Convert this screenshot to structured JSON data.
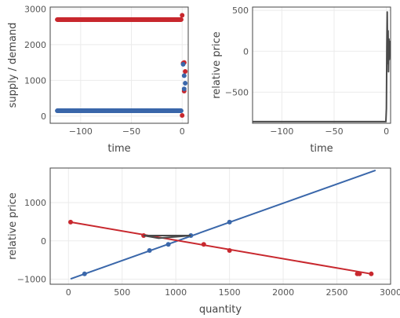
{
  "colors": {
    "supply": "#3a67aa",
    "demand": "#c8282e",
    "price": "#4a4a4a",
    "grid": "#ebebeb",
    "axis": "#444444"
  },
  "chart_data": [
    {
      "id": "top-left",
      "type": "scatter",
      "title": "",
      "xlabel": "time",
      "ylabel": "supply / demand",
      "xlim": [
        -130,
        6
      ],
      "ylim": [
        -200,
        3050
      ],
      "xticks": [
        -100,
        -50,
        0
      ],
      "yticks": [
        0,
        1000,
        2000,
        3000
      ],
      "series": [
        {
          "color": "#c8282e",
          "flat": {
            "x_start": -123,
            "x_end": -1,
            "step": 0.5,
            "y": 2700
          },
          "points": [
            [
              0,
              2820
            ],
            [
              1,
              1480
            ],
            [
              2,
              1500
            ],
            [
              3,
              1250
            ],
            [
              2,
              700
            ],
            [
              0,
              20
            ]
          ]
        },
        {
          "color": "#3a67aa",
          "flat": {
            "x_start": -123,
            "x_end": -1,
            "step": 0.5,
            "y": 150
          },
          "points": [
            [
              1,
              1450
            ],
            [
              2,
              1130
            ],
            [
              3,
              920
            ],
            [
              2,
              760
            ]
          ]
        }
      ]
    },
    {
      "id": "top-right",
      "type": "line",
      "title": "",
      "xlabel": "time",
      "ylabel": "relative price",
      "xlim": [
        -128,
        4
      ],
      "ylim": [
        -880,
        540
      ],
      "xticks": [
        -100,
        -50,
        0
      ],
      "yticks": [
        -500,
        0,
        500
      ],
      "series": [
        {
          "color": "#4a4a4a",
          "points": [
            [
              -128,
              -860
            ],
            [
              -0.5,
              -860
            ],
            [
              0,
              -700
            ],
            [
              0.4,
              30
            ],
            [
              0.8,
              480
            ],
            [
              1.2,
              -150
            ],
            [
              1.6,
              250
            ],
            [
              2.0,
              -250
            ],
            [
              2.4,
              150
            ],
            [
              2.8,
              -100
            ],
            [
              3.2,
              120
            ],
            [
              3.6,
              -50
            ],
            [
              4,
              20
            ]
          ]
        }
      ]
    },
    {
      "id": "bottom",
      "type": "line",
      "title": "",
      "xlabel": "quantity",
      "ylabel": "relative price",
      "xlim": [
        -170,
        3000
      ],
      "ylim": [
        -1130,
        1900
      ],
      "xticks": [
        0,
        500,
        1000,
        1500,
        2000,
        2500,
        3000
      ],
      "yticks": [
        -1000,
        0,
        1000
      ],
      "series": [
        {
          "color": "#3a67aa",
          "line": [
            [
              20,
              -990
            ],
            [
              2860,
              1840
            ]
          ],
          "markers": [
            [
              150,
              -860
            ],
            [
              755,
              -250
            ],
            [
              930,
              -90
            ],
            [
              1140,
              140
            ],
            [
              1500,
              490
            ]
          ]
        },
        {
          "color": "#c8282e",
          "line": [
            [
              20,
              490
            ],
            [
              2820,
              -860
            ]
          ],
          "markers": [
            [
              20,
              490
            ],
            [
              700,
              140
            ],
            [
              1260,
              -90
            ],
            [
              1500,
              -250
            ],
            [
              2690,
              -860
            ],
            [
              2710,
              -860
            ],
            [
              2820,
              -860
            ]
          ]
        },
        {
          "color": "#4a4a4a",
          "line": [
            [
              700,
              140
            ],
            [
              1140,
              140
            ],
            [
              840,
              70
            ],
            [
              700,
              140
            ]
          ],
          "markers": []
        }
      ]
    }
  ]
}
